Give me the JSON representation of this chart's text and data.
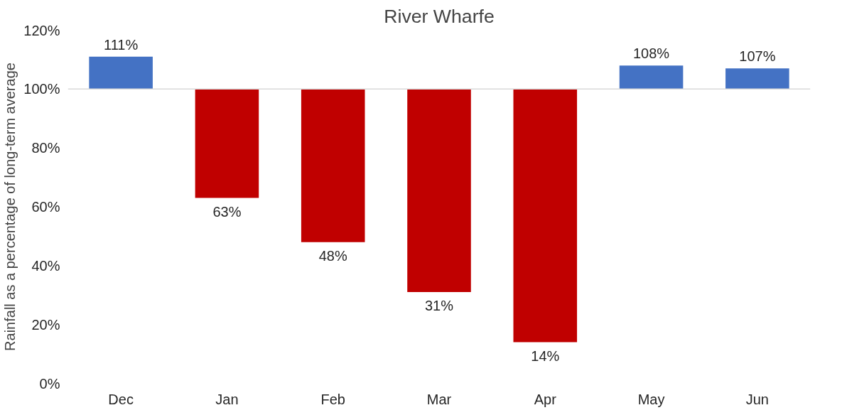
{
  "chart_data": {
    "type": "bar",
    "title": "River Wharfe",
    "ylabel": "Rainfall as a percentage of long-term average",
    "categories": [
      "Dec",
      "Jan",
      "Feb",
      "Mar",
      "Apr",
      "May",
      "Jun"
    ],
    "base": [
      100,
      100,
      100,
      100,
      100,
      100,
      100
    ],
    "values": [
      11,
      -37,
      -52,
      -69,
      -86,
      8,
      7
    ],
    "colors": [
      "#4472c4",
      "#c00000",
      "#c00000",
      "#c00000",
      "#c00000",
      "#4472c4",
      "#4472c4"
    ],
    "value_labels": [
      "111%",
      "63%",
      "48%",
      "31%",
      "14%",
      "108%",
      "107%"
    ],
    "ylim": [
      0,
      120
    ],
    "yticks": [
      {
        "value": 0,
        "label": "0%"
      },
      {
        "value": 20,
        "label": "20%"
      },
      {
        "value": 40,
        "label": "40%"
      },
      {
        "value": 60,
        "label": "60%"
      },
      {
        "value": 80,
        "label": "80%"
      },
      {
        "value": 100,
        "label": "100%"
      },
      {
        "value": 120,
        "label": "120%"
      }
    ],
    "ref_lines": [
      {
        "axis": "y",
        "value": 100,
        "color": "#d9d9d9"
      }
    ],
    "grid": false
  }
}
